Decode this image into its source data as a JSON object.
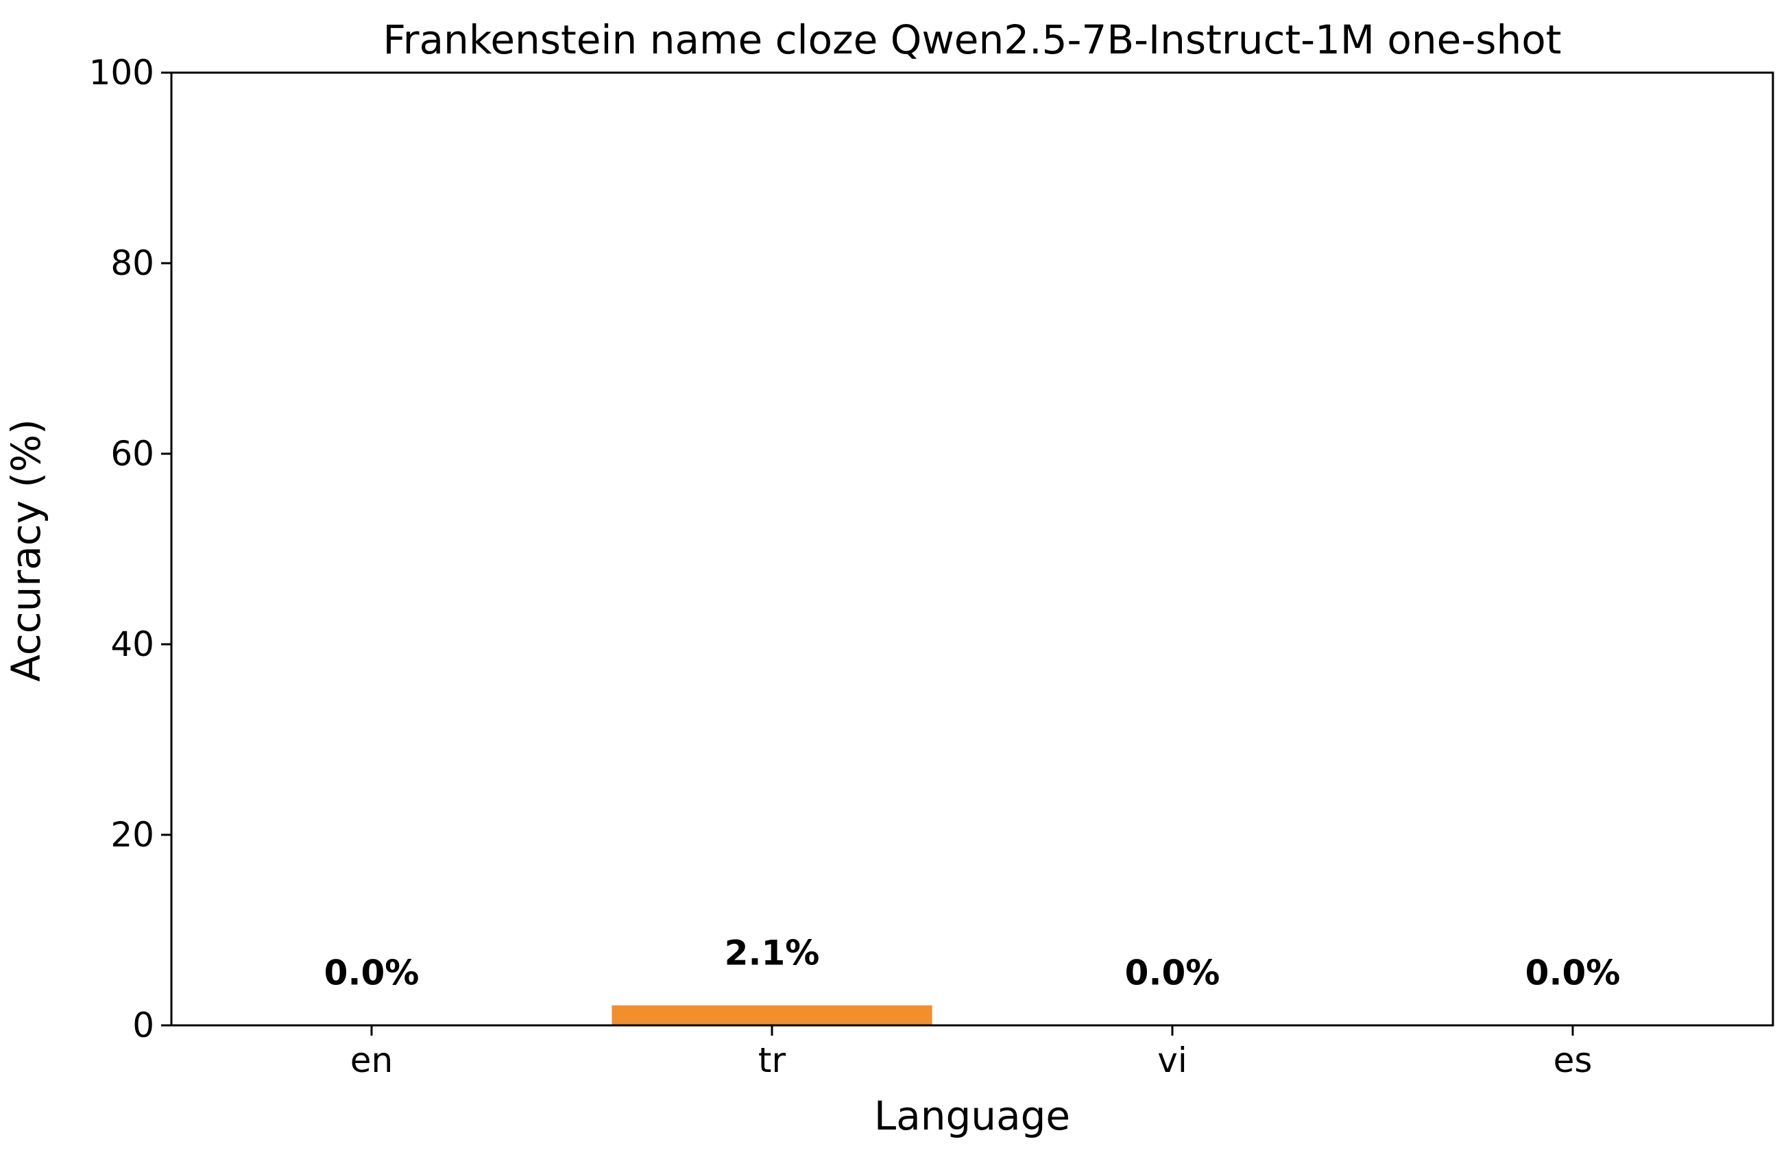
{
  "chart_data": {
    "type": "bar",
    "title": "Frankenstein name cloze Qwen2.5-7B-Instruct-1M one-shot",
    "xlabel": "Language",
    "ylabel": "Accuracy (%)",
    "categories": [
      "en",
      "tr",
      "vi",
      "es"
    ],
    "values": [
      0.0,
      2.1,
      0.0,
      0.0
    ],
    "value_labels": [
      "0.0%",
      "2.1%",
      "0.0%",
      "0.0%"
    ],
    "ylim": [
      0,
      100
    ],
    "yticks": [
      0,
      20,
      40,
      60,
      80,
      100
    ],
    "ytick_labels": [
      "0",
      "20",
      "40",
      "60",
      "80",
      "100"
    ],
    "bar_colors": [
      "#f28e2b",
      "#f28e2b",
      "#f28e2b",
      "#f28e2b"
    ],
    "grid": false,
    "legend": "none"
  }
}
